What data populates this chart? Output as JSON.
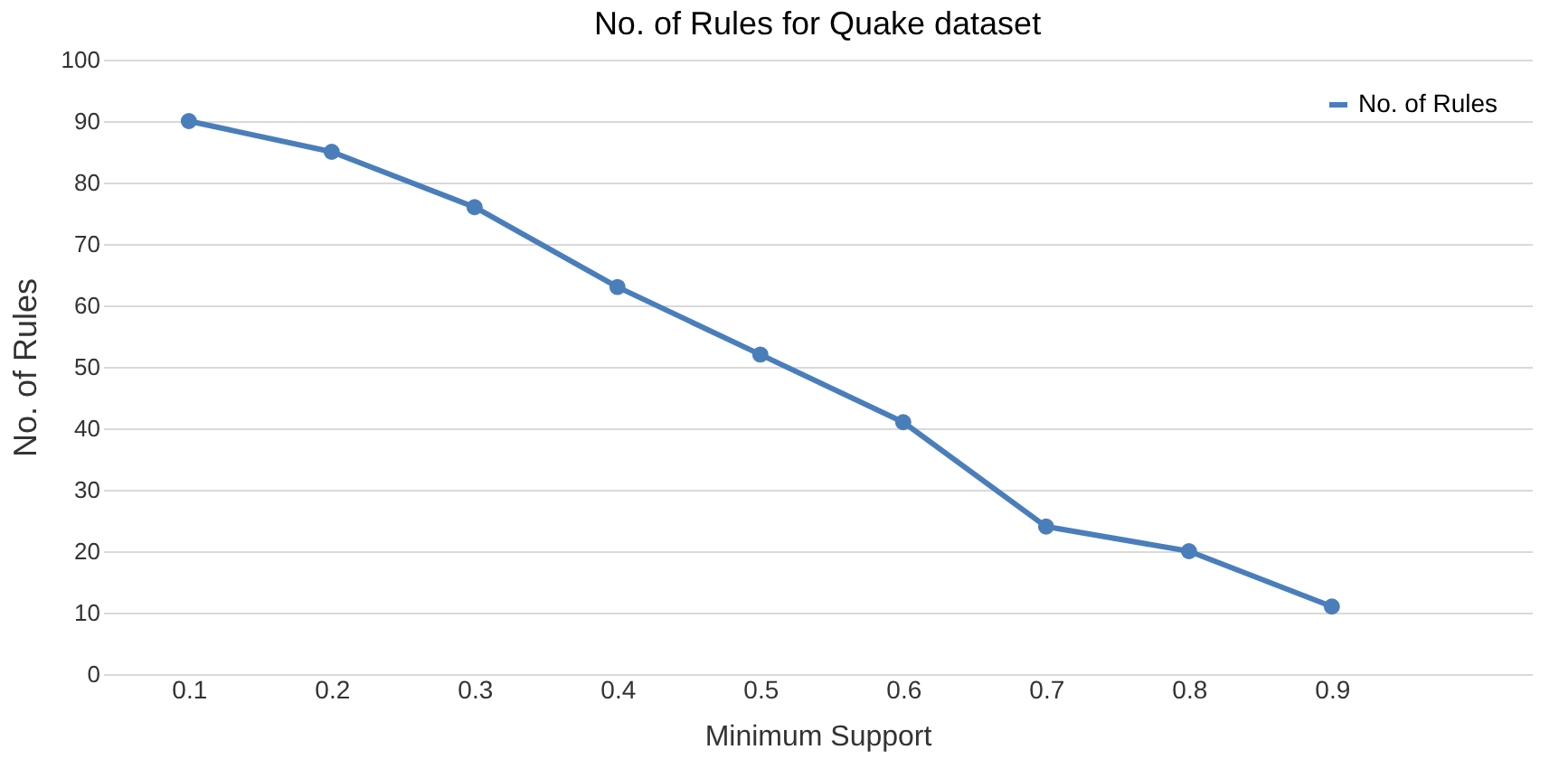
{
  "chart_data": {
    "type": "line",
    "title": "No. of Rules for Quake dataset",
    "xlabel": "Minimum Support",
    "ylabel": "No. of Rules",
    "categories": [
      "0.1",
      "0.2",
      "0.3",
      "0.4",
      "0.5",
      "0.6",
      "0.7",
      "0.8",
      "0.9"
    ],
    "series": [
      {
        "name": "No. of Rules",
        "color": "#4a7ebb",
        "values": [
          90,
          85,
          76,
          63,
          52,
          41,
          24,
          20,
          11
        ]
      }
    ],
    "ylim": [
      0,
      100
    ],
    "yticks": [
      0,
      10,
      20,
      30,
      40,
      50,
      60,
      70,
      80,
      90,
      100
    ],
    "grid": "y",
    "legend": "top right",
    "marker": "circle",
    "line_style": "solid"
  }
}
